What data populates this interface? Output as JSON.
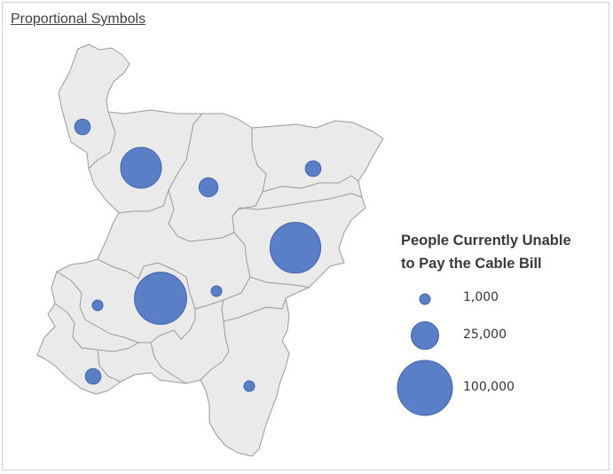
{
  "title": "Proportional Symbols",
  "legend": {
    "title_line1": "People Currently Unable",
    "title_line2": "to Pay the Cable Bill",
    "entries": [
      {
        "label": "1,000",
        "value": 1000
      },
      {
        "label": "25,000",
        "value": 25000
      },
      {
        "label": "100,000",
        "value": 100000
      }
    ]
  },
  "colors": {
    "symbol_fill": "#5b7fc7",
    "symbol_stroke": "#3f66b2",
    "region_fill": "#ebeaea",
    "region_stroke": "#9a9a9a"
  },
  "symbols": [
    {
      "region": "north-west",
      "value": 8000
    },
    {
      "region": "north-central-west",
      "value": 55000
    },
    {
      "region": "north-central",
      "value": 12000
    },
    {
      "region": "north-east",
      "value": 8000
    },
    {
      "region": "east",
      "value": 85000
    },
    {
      "region": "central",
      "value": 90000
    },
    {
      "region": "central-east",
      "value": 2000
    },
    {
      "region": "west",
      "value": 3000
    },
    {
      "region": "south-west",
      "value": 8000
    },
    {
      "region": "south-east",
      "value": 3000
    }
  ]
}
